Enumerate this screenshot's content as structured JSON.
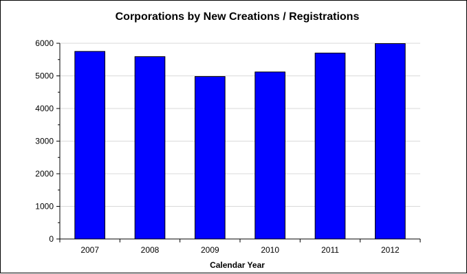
{
  "chart_data": {
    "type": "bar",
    "title": "Corporations by New Creations / Registrations",
    "xlabel": "Calendar Year",
    "ylabel": "",
    "categories": [
      "2007",
      "2008",
      "2009",
      "2010",
      "2011",
      "2012"
    ],
    "values": [
      5750,
      5590,
      4980,
      5120,
      5700,
      5990
    ],
    "ylim": [
      0,
      6000
    ],
    "yticks": [
      0,
      1000,
      2000,
      3000,
      4000,
      5000,
      6000
    ],
    "grid": true,
    "legend": "none",
    "bar_color": "#0000FF",
    "bar_outline_color": "#000000",
    "grid_color": "#D9D9D9"
  }
}
